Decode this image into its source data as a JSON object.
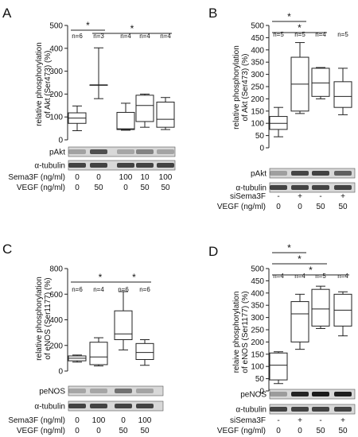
{
  "chart_data": [
    {
      "panel": "A",
      "type": "boxplot",
      "ylabel": "relative phosphorylation of Akt (Ser473) (%)",
      "ylim": [
        0,
        500
      ],
      "yticks": [
        0,
        100,
        200,
        300,
        400,
        500
      ],
      "n_labels": [
        "n=6",
        "n=3",
        "n=4",
        "n=4",
        "n=4"
      ],
      "boxes": [
        {
          "min": 40,
          "q1": 72,
          "median": 95,
          "q3": 118,
          "max": 148
        },
        {
          "min": 180,
          "q1": 240,
          "median": 240,
          "q3": 240,
          "max": 402
        },
        {
          "min": 42,
          "q1": 45,
          "median": 48,
          "q3": 120,
          "max": 160
        },
        {
          "min": 55,
          "q1": 80,
          "median": 150,
          "q3": 195,
          "max": 200
        },
        {
          "min": 45,
          "q1": 55,
          "median": 90,
          "q3": 165,
          "max": 185
        }
      ],
      "significance": [
        {
          "from": 0,
          "to": 1,
          "label": "*"
        },
        {
          "from": 1,
          "to": 4,
          "label": "*"
        }
      ],
      "blot_labels": [
        "pAkt",
        "α-tubulin"
      ],
      "conditions": [
        {
          "label": "Sema3F (ng/ml)",
          "values": [
            "0",
            "0",
            "100",
            "10",
            "100"
          ]
        },
        {
          "label": "VEGF (ng/ml)",
          "values": [
            "0",
            "50",
            "0",
            "50",
            "50"
          ]
        }
      ]
    },
    {
      "panel": "B",
      "type": "boxplot",
      "ylabel": "relative phosphorylation of Akt (Ser473) (%)",
      "ylim": [
        0,
        500
      ],
      "yticks": [
        0,
        50,
        100,
        150,
        200,
        250,
        300,
        350,
        400,
        450,
        500
      ],
      "n_labels": [
        "n=5",
        "n=5",
        "n=4",
        "n=5"
      ],
      "boxes": [
        {
          "min": 45,
          "q1": 75,
          "median": 100,
          "q3": 128,
          "max": 165
        },
        {
          "min": 140,
          "q1": 150,
          "median": 260,
          "q3": 370,
          "max": 430
        },
        {
          "min": 200,
          "q1": 210,
          "median": 265,
          "q3": 325,
          "max": 328
        },
        {
          "min": 135,
          "q1": 165,
          "median": 210,
          "q3": 270,
          "max": 325
        }
      ],
      "significance": [
        {
          "from": 0,
          "to": 1,
          "label": "*"
        },
        {
          "from": 0,
          "to": 2,
          "label": "*"
        }
      ],
      "blot_labels": [
        "pAkt",
        "α-tubulin"
      ],
      "conditions": [
        {
          "label": "siSema3F",
          "values": [
            "-",
            "+",
            "-",
            "+"
          ]
        },
        {
          "label": "VEGF (ng/ml)",
          "values": [
            "0",
            "0",
            "50",
            "50"
          ]
        }
      ]
    },
    {
      "panel": "C",
      "type": "boxplot",
      "ylabel": "relative phosphorylation of eNOS (Ser1177) (%)",
      "ylim": [
        0,
        800
      ],
      "yticks": [
        0,
        200,
        400,
        600,
        800
      ],
      "n_labels": [
        "n=6",
        "n=4",
        "n=6",
        "n=6"
      ],
      "boxes": [
        {
          "min": 70,
          "q1": 80,
          "median": 100,
          "q3": 118,
          "max": 125
        },
        {
          "min": 40,
          "q1": 50,
          "median": 110,
          "q3": 225,
          "max": 260
        },
        {
          "min": 165,
          "q1": 245,
          "median": 290,
          "q3": 470,
          "max": 620
        },
        {
          "min": 45,
          "q1": 90,
          "median": 145,
          "q3": 215,
          "max": 245
        }
      ],
      "significance": [
        {
          "from": 0,
          "to": 2,
          "label": "*"
        },
        {
          "from": 2,
          "to": 3,
          "label": "*"
        }
      ],
      "blot_labels": [
        "peNOS",
        "α-tubulin"
      ],
      "conditions": [
        {
          "label": "Sema3F (ng/ml)",
          "values": [
            "0",
            "100",
            "0",
            "100"
          ]
        },
        {
          "label": "VEGF (ng/ml)",
          "values": [
            "0",
            "0",
            "50",
            "50"
          ]
        }
      ]
    },
    {
      "panel": "D",
      "type": "boxplot",
      "ylabel": "relaive phosphorylation of eNOS (Ser1177) (%)",
      "ylim": [
        0,
        500
      ],
      "yticks": [
        0,
        50,
        100,
        150,
        200,
        250,
        300,
        350,
        400,
        450,
        500
      ],
      "n_labels": [
        "n=4",
        "n=4",
        "n=5",
        "n=4"
      ],
      "boxes": [
        {
          "min": 30,
          "q1": 45,
          "median": 105,
          "q3": 155,
          "max": 160
        },
        {
          "min": 170,
          "q1": 200,
          "median": 315,
          "q3": 365,
          "max": 395
        },
        {
          "min": 255,
          "q1": 265,
          "median": 335,
          "q3": 415,
          "max": 428
        },
        {
          "min": 225,
          "q1": 265,
          "median": 330,
          "q3": 395,
          "max": 405
        }
      ],
      "significance": [
        {
          "from": 0,
          "to": 1,
          "label": "*"
        },
        {
          "from": 0,
          "to": 2,
          "label": "*"
        },
        {
          "from": 0,
          "to": 3,
          "label": "*"
        }
      ],
      "blot_labels": [
        "peNOS",
        "α-tubulin"
      ],
      "conditions": [
        {
          "label": "siSema3F",
          "values": [
            "-",
            "+",
            "-",
            "+"
          ]
        },
        {
          "label": "VEGF (ng/ml)",
          "values": [
            "0",
            "0",
            "50",
            "50"
          ]
        }
      ]
    }
  ]
}
